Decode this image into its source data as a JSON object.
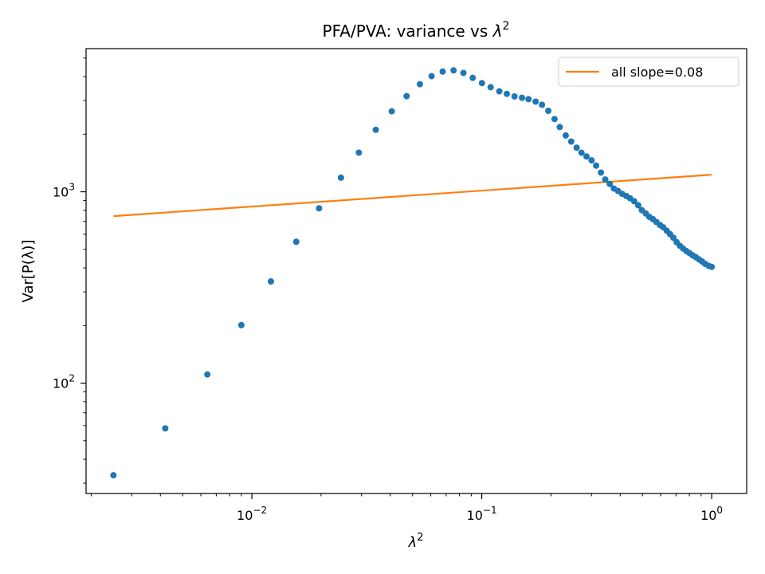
{
  "chart_data": {
    "type": "scatter",
    "title_main": "PFA/PVA: variance vs ",
    "title_sym": "λ",
    "title_sup": "2",
    "xlabel_sym": "λ",
    "xlabel_sup": "2",
    "ylabel": "Var[P(λ)]",
    "xscale": "log",
    "yscale": "log",
    "xlim": [
      0.0019,
      1.42
    ],
    "ylim": [
      26.5,
      5600
    ],
    "xticks": [
      {
        "value": 0.01,
        "base": "10",
        "exp": "−2"
      },
      {
        "value": 0.1,
        "base": "10",
        "exp": "−1"
      },
      {
        "value": 1,
        "base": "10",
        "exp": "0"
      }
    ],
    "yticks": [
      {
        "value": 100,
        "base": "10",
        "exp": "2"
      },
      {
        "value": 1000,
        "base": "10",
        "exp": "3"
      }
    ],
    "grid": false,
    "legend_position": "top-right",
    "series": [
      {
        "kind": "points",
        "color": "#1f77b4",
        "x": [
          0.0025,
          0.0042,
          0.0064,
          0.009,
          0.0121,
          0.0156,
          0.0196,
          0.0244,
          0.0292,
          0.0346,
          0.0406,
          0.0471,
          0.0538,
          0.0605,
          0.0676,
          0.0754,
          0.0832,
          0.0913,
          0.1002,
          0.1093,
          0.1192,
          0.1285,
          0.1388,
          0.1496,
          0.1597,
          0.1715,
          0.1828,
          0.1947,
          0.2073,
          0.2184,
          0.2318,
          0.2449,
          0.2587,
          0.2715,
          0.2856,
          0.3005,
          0.3144,
          0.3298,
          0.3445,
          0.3603,
          0.3755,
          0.3914,
          0.4082,
          0.4256,
          0.4419,
          0.4602,
          0.4791,
          0.4967,
          0.517,
          0.535,
          0.5547,
          0.575,
          0.5964,
          0.6158,
          0.6383,
          0.6597,
          0.6818,
          0.7044,
          0.7277,
          0.7516,
          0.7762,
          0.8014,
          0.8273,
          0.8538,
          0.881,
          0.9089,
          0.9375,
          0.9702,
          1.0
        ],
        "y": [
          33,
          58,
          111,
          201,
          340,
          548,
          820,
          1185,
          1602,
          2108,
          2635,
          3160,
          3650,
          4020,
          4250,
          4310,
          4180,
          3940,
          3700,
          3520,
          3350,
          3250,
          3150,
          3100,
          3050,
          2960,
          2850,
          2650,
          2400,
          2180,
          1970,
          1830,
          1700,
          1600,
          1530,
          1460,
          1370,
          1260,
          1160,
          1100,
          1040,
          1010,
          975,
          950,
          925,
          893,
          850,
          802,
          770,
          740,
          720,
          695,
          670,
          652,
          625,
          600,
          575,
          545,
          522,
          505,
          490,
          478,
          465,
          455,
          443,
          432,
          420,
          410,
          405
        ]
      },
      {
        "kind": "line",
        "name": "all slope=0.08",
        "color": "#ff7f0e",
        "x": [
          0.0025,
          1.0
        ],
        "y": [
          746,
          1228
        ]
      }
    ]
  }
}
